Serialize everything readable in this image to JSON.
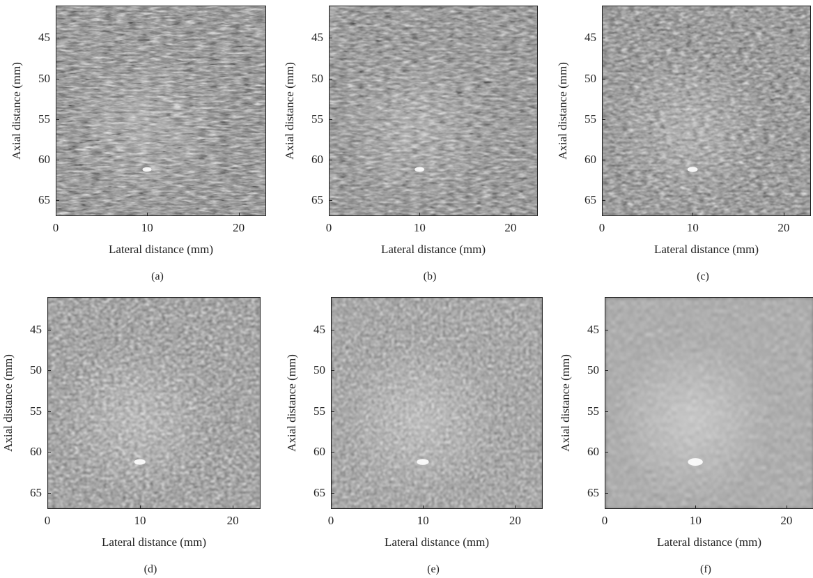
{
  "figure": {
    "x_axis_label": "Lateral distance (mm)",
    "y_axis_label": "Axial distance (mm)",
    "x_ticks": [
      "0",
      "10",
      "20"
    ],
    "y_ticks": [
      "45",
      "50",
      "55",
      "60",
      "65"
    ],
    "panels": [
      {
        "caption": "(a)",
        "blur": 0.25,
        "streak": 9,
        "contrast": 1.0
      },
      {
        "caption": "(b)",
        "blur": 0.45,
        "streak": 7,
        "contrast": 1.0
      },
      {
        "caption": "(c)",
        "blur": 0.7,
        "streak": 5,
        "contrast": 1.0
      },
      {
        "caption": "(d)",
        "blur": 1.0,
        "streak": 3,
        "contrast": 1.1
      },
      {
        "caption": "(e)",
        "blur": 1.3,
        "streak": 2.2,
        "contrast": 1.15
      },
      {
        "caption": "(f)",
        "blur": 2.4,
        "streak": 1.2,
        "contrast": 1.25
      }
    ]
  }
}
